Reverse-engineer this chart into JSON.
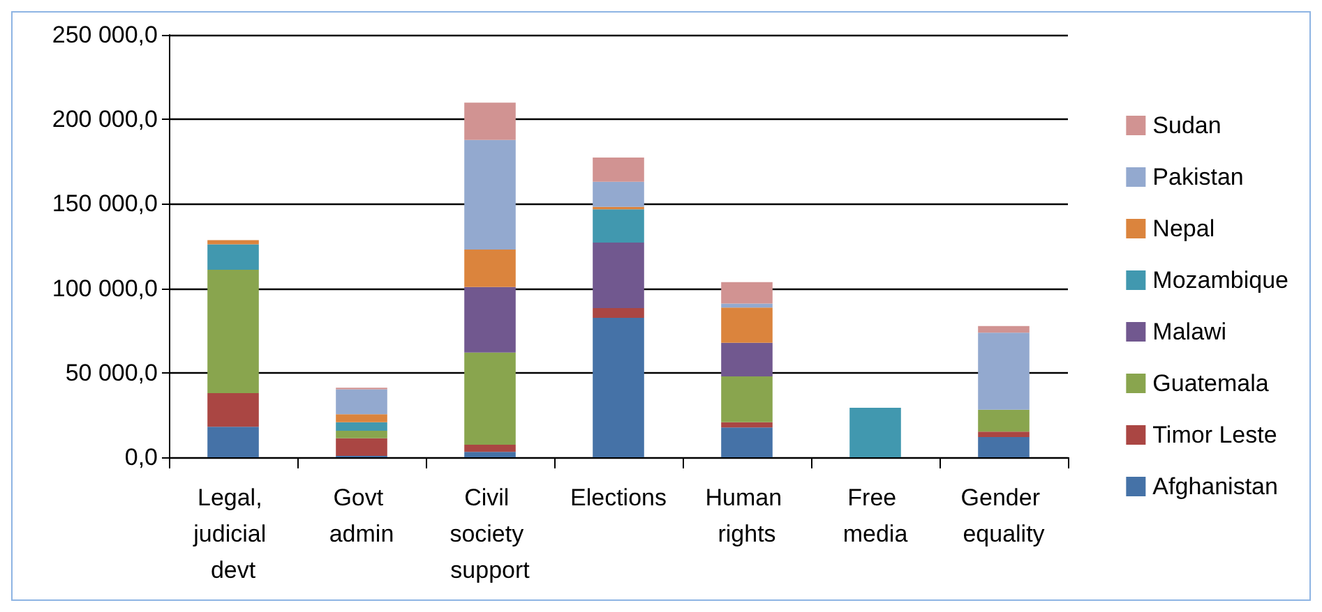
{
  "chart_data": {
    "type": "bar",
    "stacked": true,
    "categories": [
      "Legal, judicial devt",
      "Govt admin",
      "Civil society support",
      "Elections",
      "Human rights",
      "Free media",
      "Gender equality"
    ],
    "series": [
      {
        "name": "Afghanistan",
        "color": "#4572a7",
        "values": [
          18000,
          800,
          3200,
          82500,
          17600,
          0,
          12000
        ]
      },
      {
        "name": "Timor Leste",
        "color": "#aa4643",
        "values": [
          20000,
          10400,
          4200,
          5800,
          3100,
          0,
          3200
        ]
      },
      {
        "name": "Guatemala",
        "color": "#89a54e",
        "values": [
          73000,
          4500,
          54600,
          0,
          27200,
          0,
          13000
        ]
      },
      {
        "name": "Malawi",
        "color": "#71588f",
        "values": [
          0,
          0,
          38800,
          38800,
          19900,
          0,
          0
        ]
      },
      {
        "name": "Mozambique",
        "color": "#4198af",
        "values": [
          15000,
          5000,
          0,
          19700,
          0,
          29300,
          0
        ]
      },
      {
        "name": "Nepal",
        "color": "#db843d",
        "values": [
          2500,
          4800,
          22100,
          1400,
          20800,
          0,
          0
        ]
      },
      {
        "name": "Pakistan",
        "color": "#93a9cf",
        "values": [
          0,
          14700,
          64900,
          14900,
          2400,
          0,
          45500
        ]
      },
      {
        "name": "Sudan",
        "color": "#d19392",
        "values": [
          0,
          1000,
          22100,
          14300,
          12700,
          0,
          4000
        ]
      }
    ],
    "ylim": [
      0,
      250000
    ],
    "yticks": [
      {
        "value": 0,
        "label": "0,0"
      },
      {
        "value": 50000,
        "label": "50 000,0"
      },
      {
        "value": 100000,
        "label": "100 000,0"
      },
      {
        "value": 150000,
        "label": "150 000,0"
      },
      {
        "value": 200000,
        "label": "200 000,0"
      },
      {
        "value": 250000,
        "label": "250 000,0"
      }
    ],
    "grid": "y",
    "legend": "right"
  }
}
